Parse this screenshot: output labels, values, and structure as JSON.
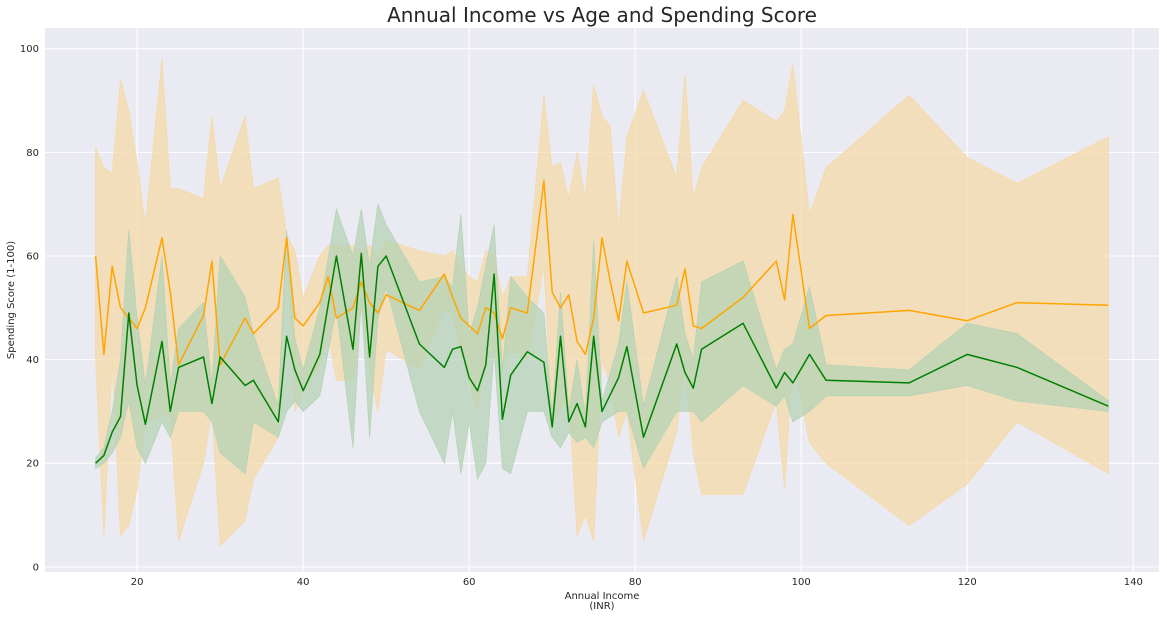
{
  "chart_data": {
    "type": "line",
    "title": "Annual Income vs Age and Spending Score",
    "xlabel": [
      "Annual Income",
      "(INR)"
    ],
    "ylabel": "Spending Score (1-100)",
    "xlim": [
      8.9,
      143.1
    ],
    "ylim": [
      -1,
      104
    ],
    "x_ticks": [
      20,
      40,
      60,
      80,
      100,
      120,
      140
    ],
    "y_ticks": [
      0,
      20,
      40,
      60,
      80,
      100
    ],
    "grid": true,
    "background": "#eaeaf2",
    "series": [
      {
        "color": "#ffa500",
        "band_color": "#f5d9a8",
        "points": [
          [
            15,
            60,
            40,
            81
          ],
          [
            16,
            41,
            6,
            77
          ],
          [
            17,
            58,
            40,
            76
          ],
          [
            18,
            50,
            6,
            94
          ],
          [
            19,
            48,
            8,
            88
          ],
          [
            20,
            46,
            15,
            78
          ],
          [
            21,
            50,
            28,
            66
          ],
          [
            23,
            63.5,
            29,
            98
          ],
          [
            24,
            53,
            29,
            73
          ],
          [
            25,
            39,
            5,
            73
          ],
          [
            28,
            48.5,
            20,
            71
          ],
          [
            29,
            59,
            30,
            87
          ],
          [
            30,
            39,
            4,
            73
          ],
          [
            33,
            48,
            9,
            87
          ],
          [
            34,
            45,
            17,
            73
          ],
          [
            37,
            50,
            25,
            75
          ],
          [
            38,
            63.5,
            62,
            64
          ],
          [
            39,
            48,
            30,
            61
          ],
          [
            40,
            46.5,
            34,
            52
          ],
          [
            42,
            51,
            39,
            60
          ],
          [
            43,
            56,
            45,
            62
          ],
          [
            44,
            48,
            36,
            62
          ],
          [
            46,
            50,
            36,
            62
          ],
          [
            47,
            55,
            50,
            61
          ],
          [
            48,
            51,
            38,
            62
          ],
          [
            49,
            49,
            30,
            60
          ],
          [
            50,
            52.5,
            42,
            63
          ],
          [
            54,
            49.5,
            38,
            61
          ],
          [
            57,
            56.5,
            50,
            60
          ],
          [
            58,
            52,
            48,
            61
          ],
          [
            59,
            48,
            42,
            58
          ],
          [
            60,
            46.5,
            36,
            56
          ],
          [
            61,
            45,
            30,
            55
          ],
          [
            62,
            50,
            40,
            61
          ],
          [
            63,
            49,
            42,
            60
          ],
          [
            64,
            44,
            38,
            52
          ],
          [
            65,
            50,
            42,
            56
          ],
          [
            67,
            49,
            40,
            56
          ],
          [
            69,
            74.5,
            58,
            91
          ],
          [
            70,
            53,
            28,
            77
          ],
          [
            71,
            50,
            30,
            78
          ],
          [
            72,
            52.5,
            33,
            71
          ],
          [
            73,
            43.5,
            6,
            80
          ],
          [
            74,
            41,
            10,
            71
          ],
          [
            75,
            48,
            5,
            93
          ],
          [
            76,
            63.5,
            40,
            87
          ],
          [
            77,
            55,
            35,
            85
          ],
          [
            78,
            47.5,
            25,
            65
          ],
          [
            79,
            59,
            30,
            83
          ],
          [
            81,
            49,
            5,
            92
          ],
          [
            85,
            50.5,
            26,
            75
          ],
          [
            86,
            57.5,
            40,
            95
          ],
          [
            87,
            46.5,
            22,
            71
          ],
          [
            88,
            46,
            14,
            77
          ],
          [
            93,
            52,
            14,
            90
          ],
          [
            97,
            59,
            32,
            86
          ],
          [
            98,
            51.5,
            15,
            88
          ],
          [
            99,
            68,
            40,
            97
          ],
          [
            101,
            46,
            24,
            68
          ],
          [
            103,
            48.5,
            20,
            77
          ],
          [
            113,
            49.5,
            8,
            91
          ],
          [
            120,
            47.5,
            16,
            79
          ],
          [
            126,
            51,
            28,
            74
          ],
          [
            137,
            50.5,
            18,
            83
          ]
        ]
      },
      {
        "color": "#008000",
        "band_color": "#b5d3b5",
        "points": [
          [
            15,
            20,
            19,
            21
          ],
          [
            16,
            21.5,
            20,
            23
          ],
          [
            17,
            26,
            22,
            30
          ],
          [
            18,
            29,
            25,
            40
          ],
          [
            19,
            49,
            32,
            65
          ],
          [
            20,
            35,
            23,
            48
          ],
          [
            21,
            27.5,
            20,
            35
          ],
          [
            23,
            43.5,
            28,
            60
          ],
          [
            24,
            30,
            25,
            35
          ],
          [
            25,
            38.5,
            30,
            46
          ],
          [
            28,
            40.5,
            30,
            51
          ],
          [
            29,
            31.5,
            28,
            35
          ],
          [
            30,
            40.5,
            22,
            60
          ],
          [
            33,
            35,
            18,
            52
          ],
          [
            34,
            36,
            28,
            45
          ],
          [
            37,
            28,
            25,
            31
          ],
          [
            38,
            44.5,
            30,
            65
          ],
          [
            39,
            38,
            32,
            44
          ],
          [
            40,
            34,
            30,
            38
          ],
          [
            42,
            41,
            33,
            50
          ],
          [
            44,
            60,
            50,
            69
          ],
          [
            46,
            42,
            23,
            60
          ],
          [
            47,
            60.5,
            52,
            69
          ],
          [
            48,
            40.5,
            25,
            58
          ],
          [
            49,
            58,
            48,
            70
          ],
          [
            50,
            60,
            54,
            66
          ],
          [
            54,
            43,
            30,
            55
          ],
          [
            57,
            38.5,
            20,
            56
          ],
          [
            58,
            42,
            30,
            54
          ],
          [
            59,
            42.5,
            18,
            68
          ],
          [
            60,
            36.5,
            28,
            45
          ],
          [
            61,
            34,
            17,
            50
          ],
          [
            62,
            39,
            20,
            58
          ],
          [
            63,
            56.5,
            42,
            66
          ],
          [
            64,
            28.5,
            19,
            38
          ],
          [
            65,
            37,
            18,
            56
          ],
          [
            67,
            41.5,
            30,
            52
          ],
          [
            69,
            39.5,
            30,
            49
          ],
          [
            70,
            27,
            25,
            29
          ],
          [
            71,
            44.5,
            23,
            53
          ],
          [
            72,
            28,
            26,
            30
          ],
          [
            73,
            31.5,
            24,
            40
          ],
          [
            74,
            27,
            25,
            29
          ],
          [
            75,
            44.5,
            23,
            63
          ],
          [
            76,
            30,
            28,
            32
          ],
          [
            78,
            36.5,
            30,
            43
          ],
          [
            79,
            42.5,
            30,
            55
          ],
          [
            81,
            25,
            19,
            31
          ],
          [
            85,
            43,
            30,
            56
          ],
          [
            86,
            37.5,
            30,
            45
          ],
          [
            87,
            34.5,
            30,
            40
          ],
          [
            88,
            42,
            28,
            55
          ],
          [
            93,
            47,
            35,
            59
          ],
          [
            97,
            34.5,
            31,
            38
          ],
          [
            98,
            37.5,
            33,
            42
          ],
          [
            99,
            35.5,
            28,
            43
          ],
          [
            101,
            41,
            30,
            54
          ],
          [
            103,
            36,
            33,
            39
          ],
          [
            113,
            35.5,
            33,
            38
          ],
          [
            120,
            41,
            35,
            47
          ],
          [
            126,
            38.5,
            32,
            45
          ],
          [
            137,
            31,
            30,
            32
          ]
        ]
      }
    ]
  }
}
